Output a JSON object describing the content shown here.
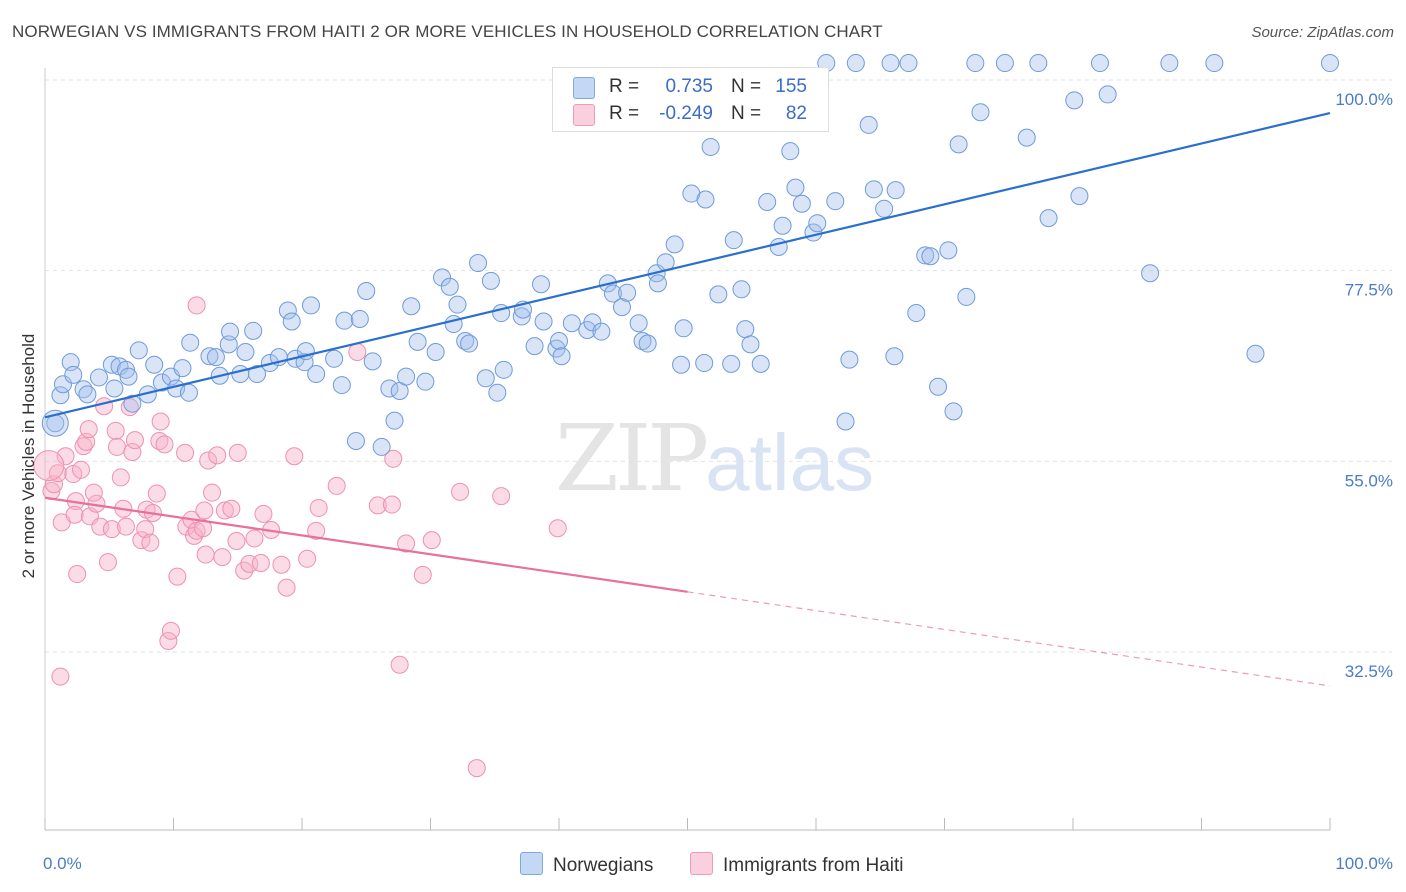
{
  "title": "NORWEGIAN VS IMMIGRANTS FROM HAITI 2 OR MORE VEHICLES IN HOUSEHOLD CORRELATION CHART",
  "source": "Source: ZipAtlas.com",
  "watermark": {
    "zip": "ZIP",
    "atlas": "atlas"
  },
  "legend": {
    "r_label": "R =",
    "n_label": "N =",
    "rows": [
      {
        "r": "0.735",
        "n": "155"
      },
      {
        "r": "-0.249",
        "n": "82"
      }
    ]
  },
  "chart_data": {
    "type": "scatter",
    "title": "NORWEGIAN VS IMMIGRANTS FROM HAITI 2 OR MORE VEHICLES IN HOUSEHOLD CORRELATION CHART",
    "xlabel": "",
    "ylabel": "2 or more Vehicles in Household",
    "xlim": [
      0,
      100
    ],
    "ylim": [
      10,
      102
    ],
    "x_tick_labels": [
      "0.0%",
      "100.0%"
    ],
    "y_ticks": [
      32.5,
      55.0,
      77.5,
      100.0
    ],
    "y_tick_labels": [
      "32.5%",
      "55.0%",
      "77.5%",
      "100.0%"
    ],
    "grid": true,
    "legend_position": "top-center",
    "colors": {
      "Norwegians": "#7fa7e0",
      "Immigrants from Haiti": "#f09ab6",
      "Norwegians_line": "#2a6fcf",
      "Immigrants from Haiti_line": "#e8709a"
    },
    "series": [
      {
        "name": "Norwegians",
        "r": 0.735,
        "n": 155,
        "trend": {
          "x": [
            0,
            100
          ],
          "y": [
            60.2,
            96.1
          ]
        },
        "points": [
          [
            0.8,
            59.5
          ],
          [
            1.2,
            62.8
          ],
          [
            1.4,
            64.1
          ],
          [
            2.0,
            66.7
          ],
          [
            2.2,
            65.2
          ],
          [
            3.0,
            63.5
          ],
          [
            3.3,
            62.9
          ],
          [
            4.2,
            64.9
          ],
          [
            5.4,
            63.6
          ],
          [
            5.2,
            66.4
          ],
          [
            5.8,
            66.2
          ],
          [
            6.3,
            65.8
          ],
          [
            6.5,
            65.0
          ],
          [
            6.8,
            61.8
          ],
          [
            7.3,
            68.1
          ],
          [
            8.0,
            62.9
          ],
          [
            8.5,
            66.4
          ],
          [
            9.1,
            64.3
          ],
          [
            9.8,
            65.0
          ],
          [
            10.2,
            63.6
          ],
          [
            10.7,
            66.0
          ],
          [
            11.2,
            63.1
          ],
          [
            11.3,
            69.0
          ],
          [
            12.8,
            67.4
          ],
          [
            13.3,
            67.3
          ],
          [
            13.6,
            65.1
          ],
          [
            14.3,
            68.8
          ],
          [
            14.4,
            70.3
          ],
          [
            15.2,
            65.3
          ],
          [
            15.6,
            67.9
          ],
          [
            16.2,
            70.4
          ],
          [
            16.5,
            65.3
          ],
          [
            17.5,
            66.6
          ],
          [
            18.2,
            67.3
          ],
          [
            18.9,
            72.8
          ],
          [
            19.2,
            71.5
          ],
          [
            19.5,
            67.1
          ],
          [
            20.2,
            66.7
          ],
          [
            20.3,
            68.0
          ],
          [
            20.7,
            73.4
          ],
          [
            21.1,
            65.3
          ],
          [
            22.5,
            67.1
          ],
          [
            23.1,
            64.0
          ],
          [
            23.3,
            71.6
          ],
          [
            24.5,
            71.8
          ],
          [
            24.2,
            57.4
          ],
          [
            25.0,
            75.1
          ],
          [
            25.5,
            66.8
          ],
          [
            26.2,
            56.7
          ],
          [
            26.8,
            63.6
          ],
          [
            27.2,
            59.8
          ],
          [
            27.6,
            63.3
          ],
          [
            28.1,
            65.0
          ],
          [
            28.5,
            73.3
          ],
          [
            29.0,
            69.1
          ],
          [
            29.6,
            64.4
          ],
          [
            30.4,
            67.9
          ],
          [
            30.9,
            76.7
          ],
          [
            31.5,
            75.6
          ],
          [
            31.8,
            71.2
          ],
          [
            32.1,
            73.5
          ],
          [
            32.7,
            69.2
          ],
          [
            33.0,
            68.9
          ],
          [
            33.7,
            78.4
          ],
          [
            34.3,
            64.8
          ],
          [
            34.7,
            76.3
          ],
          [
            35.2,
            63.1
          ],
          [
            35.7,
            65.8
          ],
          [
            35.5,
            72.5
          ],
          [
            37.1,
            72.1
          ],
          [
            37.2,
            72.9
          ],
          [
            38.1,
            68.6
          ],
          [
            38.6,
            75.9
          ],
          [
            38.8,
            71.5
          ],
          [
            39.8,
            68.3
          ],
          [
            40.0,
            69.2
          ],
          [
            40.2,
            67.4
          ],
          [
            41.0,
            71.3
          ],
          [
            42.2,
            70.5
          ],
          [
            42.6,
            71.4
          ],
          [
            43.3,
            70.3
          ],
          [
            43.8,
            76.0
          ],
          [
            44.2,
            74.8
          ],
          [
            44.9,
            73.2
          ],
          [
            45.3,
            74.9
          ],
          [
            46.2,
            71.3
          ],
          [
            46.5,
            69.2
          ],
          [
            46.9,
            68.9
          ],
          [
            47.6,
            77.2
          ],
          [
            47.7,
            76.0
          ],
          [
            48.3,
            78.5
          ],
          [
            49.0,
            80.6
          ],
          [
            49.5,
            66.4
          ],
          [
            49.7,
            70.7
          ],
          [
            50.3,
            86.6
          ],
          [
            51.4,
            85.9
          ],
          [
            51.3,
            66.6
          ],
          [
            51.8,
            92.1
          ],
          [
            52.4,
            74.7
          ],
          [
            53.4,
            66.5
          ],
          [
            53.6,
            81.1
          ],
          [
            54.2,
            75.3
          ],
          [
            54.5,
            70.6
          ],
          [
            54.9,
            68.8
          ],
          [
            55.7,
            66.5
          ],
          [
            56.2,
            85.6
          ],
          [
            57.1,
            80.3
          ],
          [
            57.4,
            82.8
          ],
          [
            58.0,
            91.6
          ],
          [
            58.4,
            87.3
          ],
          [
            58.9,
            85.4
          ],
          [
            59.8,
            82.0
          ],
          [
            60.1,
            83.1
          ],
          [
            60.8,
            102.0
          ],
          [
            61.5,
            85.7
          ],
          [
            62.3,
            59.7
          ],
          [
            62.6,
            67.0
          ],
          [
            63.1,
            102.0
          ],
          [
            64.1,
            94.7
          ],
          [
            64.5,
            87.1
          ],
          [
            65.3,
            84.8
          ],
          [
            65.8,
            102.0
          ],
          [
            66.1,
            67.4
          ],
          [
            66.2,
            87.0
          ],
          [
            67.2,
            102.0
          ],
          [
            67.8,
            72.5
          ],
          [
            68.5,
            79.3
          ],
          [
            68.9,
            79.2
          ],
          [
            69.5,
            63.8
          ],
          [
            70.3,
            79.9
          ],
          [
            70.7,
            60.9
          ],
          [
            71.1,
            92.4
          ],
          [
            71.7,
            74.4
          ],
          [
            72.4,
            102.0
          ],
          [
            72.8,
            96.2
          ],
          [
            74.7,
            102.0
          ],
          [
            77.3,
            102.0
          ],
          [
            76.4,
            93.2
          ],
          [
            78.1,
            83.7
          ],
          [
            80.1,
            97.6
          ],
          [
            80.5,
            86.3
          ],
          [
            82.1,
            102.0
          ],
          [
            82.7,
            98.3
          ],
          [
            86.0,
            77.2
          ],
          [
            87.5,
            102.0
          ],
          [
            91.0,
            102.0
          ],
          [
            94.2,
            67.7
          ],
          [
            100.0,
            102.0
          ]
        ]
      },
      {
        "name": "Immigrants from Haiti",
        "r": -0.249,
        "n": 82,
        "trend": {
          "x": [
            0,
            50
          ],
          "y": [
            50.7,
            39.6
          ]
        },
        "trend_dashed": {
          "x": [
            50,
            100
          ],
          "y": [
            39.6,
            28.5
          ]
        },
        "points": [
          [
            0.5,
            51.5
          ],
          [
            0.7,
            52.3
          ],
          [
            1.0,
            53.6
          ],
          [
            1.2,
            29.6
          ],
          [
            1.3,
            47.8
          ],
          [
            1.6,
            55.6
          ],
          [
            2.2,
            53.5
          ],
          [
            2.4,
            50.3
          ],
          [
            2.3,
            48.7
          ],
          [
            2.5,
            41.7
          ],
          [
            2.8,
            54.0
          ],
          [
            3.0,
            56.8
          ],
          [
            3.2,
            57.3
          ],
          [
            3.4,
            58.8
          ],
          [
            3.5,
            48.5
          ],
          [
            4.0,
            50.0
          ],
          [
            4.3,
            47.3
          ],
          [
            4.6,
            61.5
          ],
          [
            4.9,
            43.1
          ],
          [
            5.2,
            47.0
          ],
          [
            5.5,
            58.6
          ],
          [
            5.6,
            56.7
          ],
          [
            5.9,
            53.1
          ],
          [
            6.1,
            49.4
          ],
          [
            6.3,
            47.3
          ],
          [
            6.8,
            56.1
          ],
          [
            7.0,
            57.5
          ],
          [
            7.5,
            45.7
          ],
          [
            7.8,
            47.0
          ],
          [
            7.9,
            49.3
          ],
          [
            8.2,
            45.4
          ],
          [
            8.4,
            48.9
          ],
          [
            8.7,
            51.2
          ],
          [
            8.9,
            57.4
          ],
          [
            9.0,
            59.7
          ],
          [
            9.3,
            57.0
          ],
          [
            9.6,
            33.8
          ],
          [
            9.8,
            35.0
          ],
          [
            10.3,
            41.4
          ],
          [
            10.9,
            56.0
          ],
          [
            11.0,
            47.3
          ],
          [
            11.4,
            48.1
          ],
          [
            11.6,
            46.2
          ],
          [
            11.8,
            46.8
          ],
          [
            12.3,
            47.1
          ],
          [
            12.5,
            44.0
          ],
          [
            12.7,
            55.1
          ],
          [
            13.4,
            55.7
          ],
          [
            13.8,
            43.7
          ],
          [
            14.0,
            49.2
          ],
          [
            14.5,
            49.4
          ],
          [
            14.9,
            45.6
          ],
          [
            15.5,
            42.1
          ],
          [
            15.9,
            42.9
          ],
          [
            16.3,
            45.9
          ],
          [
            15.0,
            56.0
          ],
          [
            16.8,
            43.0
          ],
          [
            17.0,
            48.8
          ],
          [
            17.6,
            46.9
          ],
          [
            18.4,
            42.8
          ],
          [
            18.8,
            40.1
          ],
          [
            19.4,
            55.6
          ],
          [
            20.4,
            43.5
          ],
          [
            21.1,
            46.8
          ],
          [
            21.3,
            49.5
          ],
          [
            22.7,
            52.1
          ],
          [
            24.3,
            67.9
          ],
          [
            25.9,
            49.8
          ],
          [
            27.0,
            49.9
          ],
          [
            27.1,
            55.3
          ],
          [
            27.6,
            31.0
          ],
          [
            28.1,
            45.3
          ],
          [
            29.4,
            41.6
          ],
          [
            30.1,
            45.7
          ],
          [
            32.3,
            51.4
          ],
          [
            33.6,
            18.8
          ],
          [
            35.5,
            50.9
          ],
          [
            39.9,
            47.1
          ],
          [
            11.8,
            73.4
          ],
          [
            12.4,
            49.2
          ],
          [
            13.0,
            51.3
          ],
          [
            3.8,
            51.3
          ],
          [
            6.6,
            61.4
          ]
        ]
      }
    ]
  },
  "bottom_legend": [
    {
      "label": "Norwegians"
    },
    {
      "label": "Immigrants from Haiti"
    }
  ]
}
